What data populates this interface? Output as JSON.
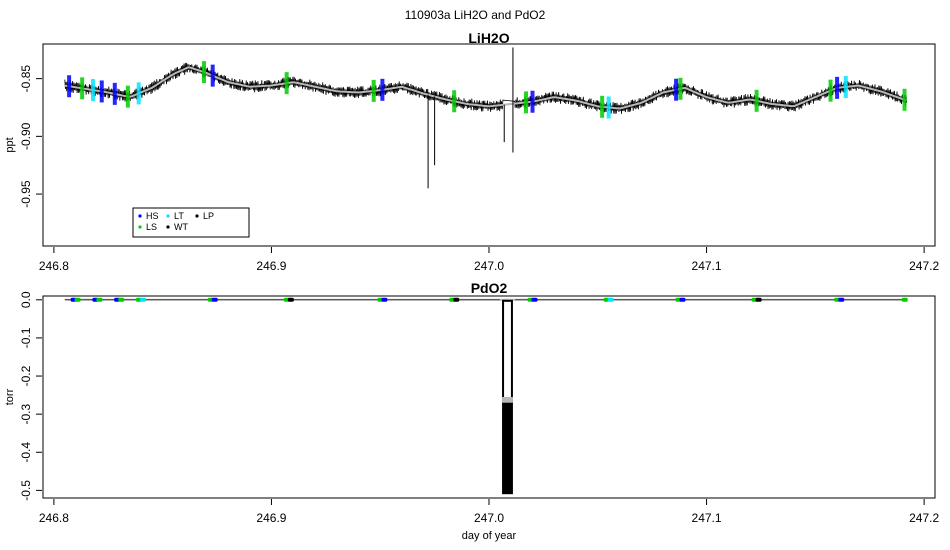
{
  "page_title": "110903a   LiH2O and PdO2",
  "chart_data": [
    {
      "type": "line",
      "title": "LiH2O",
      "xlabel": "",
      "ylabel": "ppt",
      "xlim": [
        246.795,
        247.205
      ],
      "ylim": [
        -0.995,
        -0.82
      ],
      "xticks": [
        246.8,
        246.9,
        247.0,
        247.1,
        247.2
      ],
      "xtick_labels": [
        "246.8",
        "246.9",
        "247.0",
        "247.1",
        "247.2"
      ],
      "yticks": [
        -0.85,
        -0.9,
        -0.95
      ],
      "ytick_labels": [
        "-0.85",
        "-0.90",
        "-0.95"
      ],
      "grid": false,
      "legend_position": "bottom-left",
      "legend": [
        {
          "label": "HS",
          "color": "#0000ff"
        },
        {
          "label": "LT",
          "color": "#00e5ff"
        },
        {
          "label": "LP",
          "color": "#000000"
        },
        {
          "label": "LS",
          "color": "#00cc00"
        },
        {
          "label": "WT",
          "color": "#000000"
        }
      ],
      "series": [
        {
          "color": "#000000",
          "x": [
            246.805,
            246.815,
            246.825,
            246.835,
            246.845,
            246.855,
            246.862,
            246.87,
            246.88,
            246.89,
            246.9,
            246.91,
            246.92,
            246.93,
            246.94,
            246.95,
            246.96,
            246.97,
            246.98,
            246.99,
            247.0,
            247.01,
            247.02,
            247.03,
            247.04,
            247.05,
            247.06,
            247.07,
            247.08,
            247.09,
            247.1,
            247.11,
            247.12,
            247.13,
            247.14,
            247.15,
            247.16,
            247.17,
            247.18,
            247.192
          ],
          "y": [
            -0.856,
            -0.859,
            -0.862,
            -0.866,
            -0.858,
            -0.846,
            -0.84,
            -0.845,
            -0.853,
            -0.857,
            -0.856,
            -0.853,
            -0.857,
            -0.861,
            -0.862,
            -0.86,
            -0.857,
            -0.863,
            -0.868,
            -0.872,
            -0.874,
            -0.872,
            -0.87,
            -0.866,
            -0.869,
            -0.874,
            -0.876,
            -0.871,
            -0.862,
            -0.858,
            -0.866,
            -0.871,
            -0.868,
            -0.872,
            -0.874,
            -0.866,
            -0.858,
            -0.856,
            -0.861,
            -0.869
          ]
        }
      ],
      "annotations": [
        {
          "x": 246.972,
          "y_min": -0.945,
          "note": "spike"
        },
        {
          "x": 246.975,
          "y_min": -0.925,
          "note": "spike"
        },
        {
          "x": 247.007,
          "y_min": -0.905,
          "note": "spike"
        },
        {
          "x": 247.011,
          "y_min": -0.914,
          "y_max": -0.823,
          "note": "spike"
        }
      ]
    },
    {
      "type": "line",
      "title": "PdO2",
      "xlabel": "day of year",
      "ylabel": "torr",
      "xlim": [
        246.795,
        247.205
      ],
      "ylim": [
        -0.52,
        0.01
      ],
      "xticks": [
        246.8,
        246.9,
        247.0,
        247.1,
        247.2
      ],
      "xtick_labels": [
        "246.8",
        "246.9",
        "247.0",
        "247.1",
        "247.2"
      ],
      "yticks": [
        0.0,
        -0.1,
        -0.2,
        -0.3,
        -0.4,
        -0.5
      ],
      "ytick_labels": [
        "0.0",
        "-0.1",
        "-0.2",
        "-0.3",
        "-0.4",
        "-0.5"
      ],
      "grid": false,
      "series": [
        {
          "color": "#000000",
          "x": [
            246.805,
            247.005,
            247.006,
            247.011,
            247.012,
            247.192
          ],
          "y": [
            0.0,
            0.0,
            -0.51,
            -0.51,
            0.0,
            0.0
          ]
        }
      ],
      "markers_at_zero": [
        {
          "x": 246.81,
          "colors": [
            "#0000ff",
            "#00cc00"
          ]
        },
        {
          "x": 246.82,
          "colors": [
            "#0000ff",
            "#00cc00"
          ]
        },
        {
          "x": 246.83,
          "colors": [
            "#0000ff",
            "#00cc00"
          ]
        },
        {
          "x": 246.84,
          "colors": [
            "#00cc00",
            "#00e5ff"
          ]
        },
        {
          "x": 246.873,
          "colors": [
            "#00cc00",
            "#0000ff"
          ]
        },
        {
          "x": 246.908,
          "colors": [
            "#00cc00",
            "#000000"
          ]
        },
        {
          "x": 246.951,
          "colors": [
            "#00cc00",
            "#0000ff"
          ]
        },
        {
          "x": 246.984,
          "colors": [
            "#00cc00",
            "#000000"
          ]
        },
        {
          "x": 247.02,
          "colors": [
            "#00cc00",
            "#0000ff"
          ]
        },
        {
          "x": 247.055,
          "colors": [
            "#00cc00",
            "#00e5ff"
          ]
        },
        {
          "x": 247.088,
          "colors": [
            "#00cc00",
            "#0000ff"
          ]
        },
        {
          "x": 247.123,
          "colors": [
            "#00cc00",
            "#000000"
          ]
        },
        {
          "x": 247.161,
          "colors": [
            "#00cc00",
            "#0000ff"
          ]
        },
        {
          "x": 247.192,
          "colors": [
            "#00cc00"
          ]
        }
      ]
    }
  ]
}
